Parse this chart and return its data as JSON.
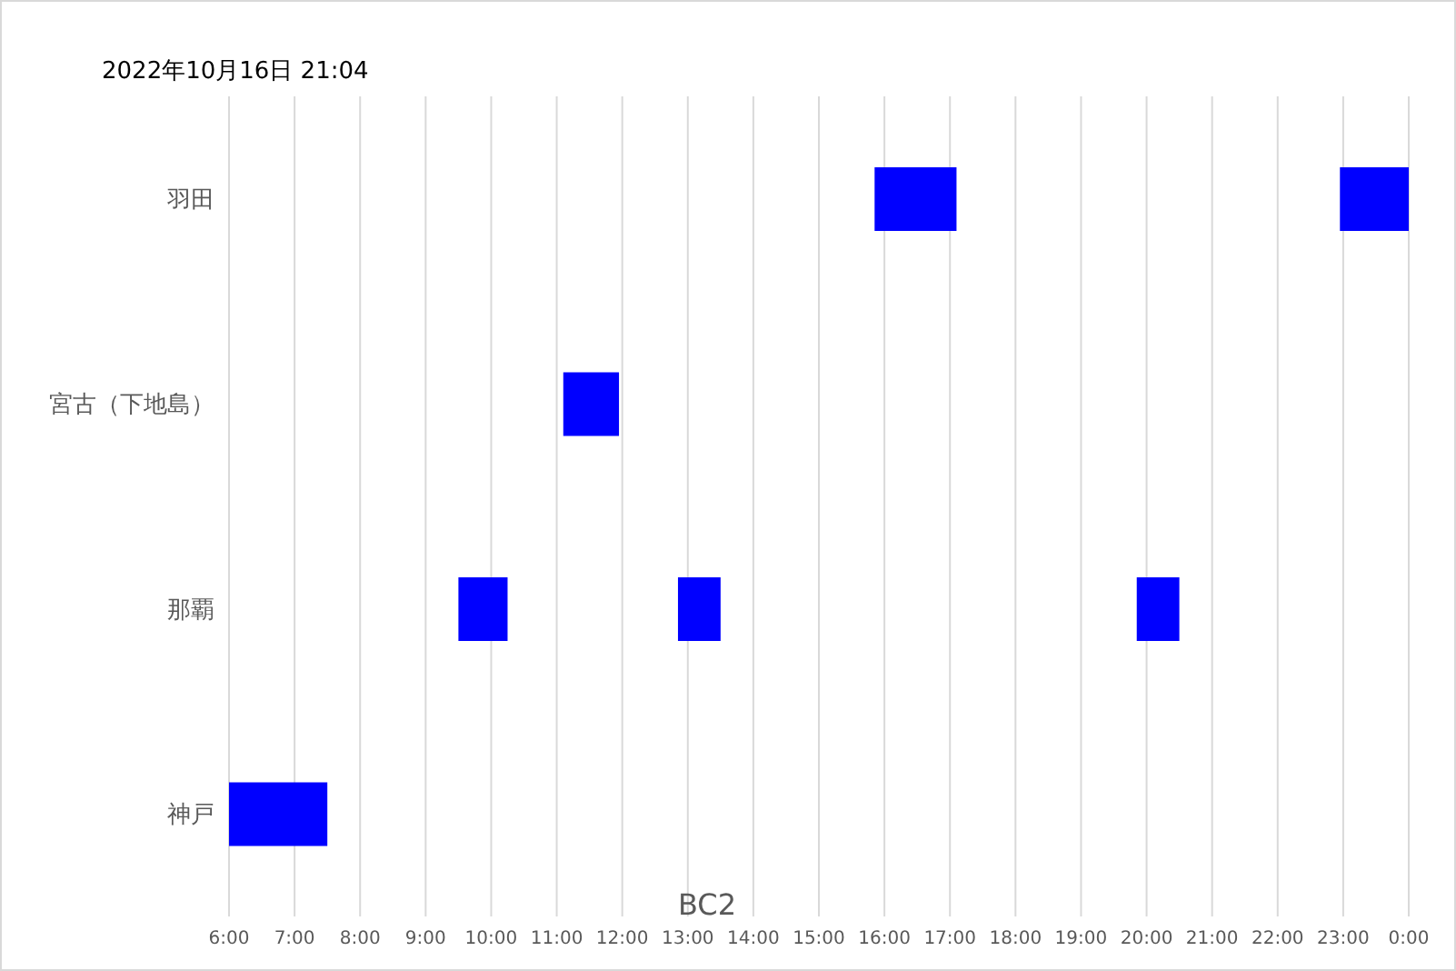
{
  "chart_data": {
    "type": "bar",
    "orientation": "horizontal",
    "title": "2022年10月16日 21:04",
    "xlabel": "BC2",
    "categories": [
      "羽田",
      "宮古（下地島）",
      "那覇",
      "神戸"
    ],
    "series": [
      {
        "color": "#0000ff",
        "base": [
          15.85,
          11.1,
          9.5,
          6
        ],
        "values": [
          1.25,
          0.85,
          0.75,
          1.5
        ]
      },
      {
        "color": "#0000ff",
        "base": [
          22.95,
          null,
          12.85,
          null
        ],
        "values": [
          1.05,
          null,
          0.65,
          null
        ]
      },
      {
        "color": "#0000ff",
        "base": [
          null,
          null,
          19.85,
          null
        ],
        "values": [
          null,
          null,
          0.65,
          null
        ]
      }
    ],
    "xlim": [
      6,
      24
    ],
    "xticks": [
      {
        "value": 6,
        "label": "6:00"
      },
      {
        "value": 7,
        "label": "7:00"
      },
      {
        "value": 8,
        "label": "8:00"
      },
      {
        "value": 9,
        "label": "9:00"
      },
      {
        "value": 10,
        "label": "10:00"
      },
      {
        "value": 11,
        "label": "11:00"
      },
      {
        "value": 12,
        "label": "12:00"
      },
      {
        "value": 13,
        "label": "13:00"
      },
      {
        "value": 14,
        "label": "14:00"
      },
      {
        "value": 15,
        "label": "15:00"
      },
      {
        "value": 16,
        "label": "16:00"
      },
      {
        "value": 17,
        "label": "17:00"
      },
      {
        "value": 18,
        "label": "18:00"
      },
      {
        "value": 19,
        "label": "19:00"
      },
      {
        "value": 20,
        "label": "20:00"
      },
      {
        "value": 21,
        "label": "21:00"
      },
      {
        "value": 22,
        "label": "22:00"
      },
      {
        "value": 23,
        "label": "23:00"
      },
      {
        "value": 24,
        "label": "0:00"
      }
    ],
    "grid": "x"
  }
}
